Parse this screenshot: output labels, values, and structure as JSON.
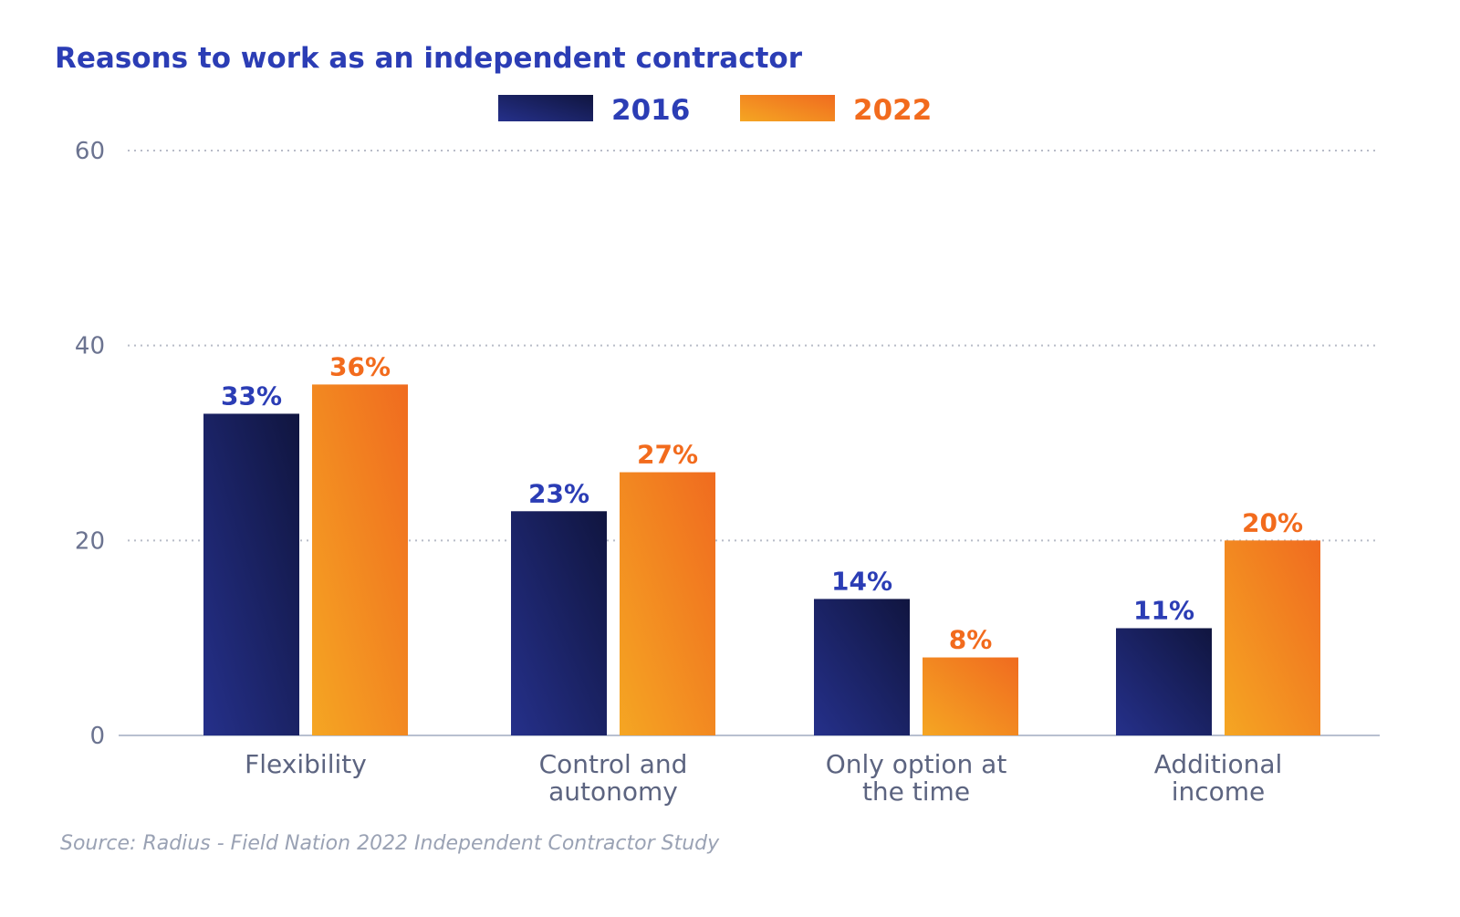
{
  "chart_data": {
    "type": "bar",
    "title": "Reasons to work as an independent contractor",
    "categories": [
      [
        "Flexibility"
      ],
      [
        "Control and",
        "autonomy"
      ],
      [
        "Only option at",
        "the time"
      ],
      [
        "Additional",
        "income"
      ]
    ],
    "series": [
      {
        "name": "2016",
        "values": [
          33,
          23,
          14,
          11
        ],
        "labels": [
          "33%",
          "23%",
          "14%",
          "11%"
        ],
        "color": "#1a1f5e",
        "label_color": "#2b3db5"
      },
      {
        "name": "2022",
        "values": [
          36,
          27,
          8,
          20
        ],
        "labels": [
          "36%",
          "27%",
          "8%",
          "20%"
        ],
        "color": "#f28a22",
        "label_color": "#f26b1d"
      }
    ],
    "xlabel": "",
    "ylabel": "",
    "ylim": [
      0,
      60
    ],
    "yticks": [
      0,
      20,
      40,
      60
    ],
    "grid": true,
    "legend": "top-center",
    "source": "Source:  Radius - Field Nation 2022 Independent Contractor Study"
  }
}
